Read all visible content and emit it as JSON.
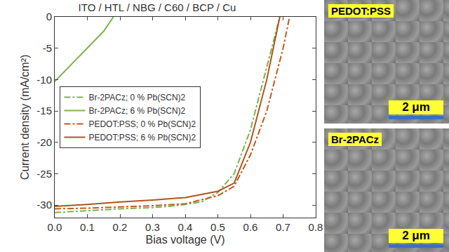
{
  "chart_data": {
    "type": "line",
    "title": "ITO / HTL / NBG / C60 / BCP / Cu",
    "x_label": "Bias voltage (V)",
    "y_label": "Current density (mA/cm²)",
    "xlim": [
      0,
      0.8
    ],
    "xticks": [
      {
        "value": 0,
        "label": "0.0"
      },
      0.1,
      0.2,
      0.3,
      0.4,
      0.5,
      0.6,
      0.7,
      0.8
    ],
    "ylim": [
      -32,
      0
    ],
    "yticks": [
      -30,
      -25,
      -20,
      -15,
      -10,
      -5,
      0
    ],
    "grid": false,
    "legend": "center left",
    "series": [
      {
        "name": "Br-2PACz; 0 % Pb(SCN)2",
        "color": "#7fb24a",
        "line_style": "dashdot",
        "x": [
          0,
          0.1,
          0.2,
          0.3,
          0.35,
          0.4,
          0.45,
          0.5,
          0.55,
          0.6,
          0.65,
          0.69
        ],
        "values": [
          -31.2,
          -30.9,
          -30.6,
          -30.4,
          -30.2,
          -29.9,
          -29.5,
          -28,
          -25,
          -18,
          -8,
          0
        ]
      },
      {
        "name": "Br-2PACz; 6 % Pb(SCN)2",
        "color": "#7fb24a",
        "line_style": "solid",
        "x": [
          0,
          0.05,
          0.1,
          0.15,
          0.18
        ],
        "values": [
          -10.3,
          -7.6,
          -5,
          -2.3,
          0
        ]
      },
      {
        "name": "PEDOT:PSS; 0 % Pb(SCN)2",
        "color": "#c15b1f",
        "line_style": "dashdot",
        "x": [
          0,
          0.1,
          0.2,
          0.3,
          0.4,
          0.5,
          0.55,
          0.6,
          0.65,
          0.7,
          0.72
        ],
        "values": [
          -30.6,
          -30.5,
          -30.3,
          -30.1,
          -29.8,
          -28.5,
          -27,
          -22,
          -15,
          -5,
          0
        ]
      },
      {
        "name": "PEDOT:PSS; 6 % Pb(SCN)2",
        "color": "#b0541e",
        "line_style": "solid",
        "x": [
          0,
          0.1,
          0.2,
          0.3,
          0.4,
          0.5,
          0.55,
          0.6,
          0.65,
          0.69
        ],
        "values": [
          -30.2,
          -29.9,
          -29.5,
          -29.2,
          -28.8,
          -27.8,
          -26.5,
          -20,
          -10,
          0
        ]
      }
    ]
  },
  "panels": [
    {
      "label": "PEDOT:PSS",
      "scale_bar": "2 μm"
    },
    {
      "label": "Br-2PACz",
      "scale_bar": "2 μm"
    }
  ]
}
